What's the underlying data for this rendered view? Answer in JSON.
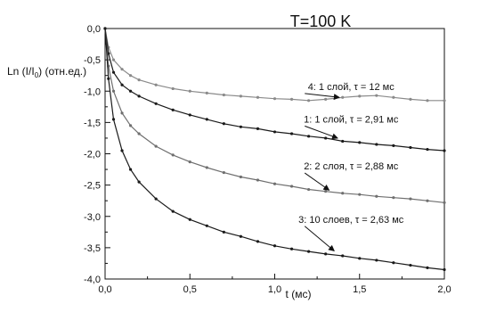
{
  "chart_data": {
    "type": "line",
    "title": "T=100 K",
    "xlabel": "t (мс)",
    "ylabel_main": "Ln (I/I",
    "ylabel_sub": "0",
    "ylabel_tail": ") (отн.ед.)",
    "xlim": [
      0,
      2.0
    ],
    "ylim": [
      -4.0,
      0.0
    ],
    "xticks": [
      0,
      0.5,
      1.0,
      1.5,
      2.0
    ],
    "xtick_labels": [
      "0,0",
      "0,5",
      "1,0",
      "1,5",
      "2,0"
    ],
    "yticks": [
      0,
      -0.5,
      -1.0,
      -1.5,
      -2.0,
      -2.5,
      -3.0,
      -3.5,
      -4.0
    ],
    "ytick_labels": [
      "0,0",
      "-0,5",
      "-1,0",
      "-1,5",
      "-2,0",
      "-2,5",
      "-3,0",
      "-3,5",
      "-4,0"
    ],
    "grid": false,
    "series": [
      {
        "label": "4: 1 слой, τ = 12 мс",
        "color": "#8a8a8a",
        "x": [
          0,
          0.02,
          0.05,
          0.1,
          0.15,
          0.2,
          0.3,
          0.4,
          0.5,
          0.6,
          0.7,
          0.8,
          0.9,
          1.0,
          1.1,
          1.2,
          1.3,
          1.4,
          1.5,
          1.6,
          1.7,
          1.8,
          1.9,
          2.0
        ],
        "y": [
          0,
          -0.3,
          -0.5,
          -0.65,
          -0.75,
          -0.82,
          -0.9,
          -0.96,
          -1.0,
          -1.03,
          -1.06,
          -1.08,
          -1.1,
          -1.12,
          -1.13,
          -1.15,
          -1.13,
          -1.1,
          -1.08,
          -1.07,
          -1.1,
          -1.13,
          -1.15,
          -1.15
        ],
        "label_at": [
          1.45,
          -0.98
        ],
        "arrow_to": [
          1.38,
          -1.1
        ]
      },
      {
        "label": "1: 1 слой, τ = 2,91 мс",
        "color": "#1a1a1a",
        "x": [
          0,
          0.02,
          0.05,
          0.1,
          0.15,
          0.2,
          0.3,
          0.4,
          0.5,
          0.6,
          0.7,
          0.8,
          0.9,
          1.0,
          1.1,
          1.2,
          1.3,
          1.4,
          1.5,
          1.6,
          1.7,
          1.8,
          1.9,
          2.0
        ],
        "y": [
          0,
          -0.4,
          -0.7,
          -0.9,
          -1.0,
          -1.08,
          -1.2,
          -1.3,
          -1.38,
          -1.45,
          -1.52,
          -1.57,
          -1.6,
          -1.65,
          -1.68,
          -1.72,
          -1.75,
          -1.8,
          -1.82,
          -1.85,
          -1.87,
          -1.9,
          -1.93,
          -1.95
        ],
        "label_at": [
          1.45,
          -1.5
        ],
        "arrow_to": [
          1.37,
          -1.75
        ]
      },
      {
        "label": "2: 2 слоя, τ = 2,88 мс",
        "color": "#6f6f6f",
        "x": [
          0,
          0.02,
          0.05,
          0.1,
          0.15,
          0.2,
          0.3,
          0.4,
          0.5,
          0.6,
          0.7,
          0.8,
          0.9,
          1.0,
          1.1,
          1.2,
          1.3,
          1.4,
          1.5,
          1.6,
          1.7,
          1.8,
          1.9,
          2.0
        ],
        "y": [
          0,
          -0.6,
          -1.0,
          -1.35,
          -1.55,
          -1.68,
          -1.88,
          -2.02,
          -2.13,
          -2.22,
          -2.3,
          -2.37,
          -2.42,
          -2.48,
          -2.52,
          -2.57,
          -2.6,
          -2.63,
          -2.65,
          -2.68,
          -2.7,
          -2.72,
          -2.75,
          -2.78
        ],
        "label_at": [
          1.45,
          -2.25
        ],
        "arrow_to": [
          1.32,
          -2.58
        ]
      },
      {
        "label": "3: 10 слоев, τ = 2,63 мс",
        "color": "#1a1a1a",
        "x": [
          0,
          0.02,
          0.05,
          0.1,
          0.15,
          0.2,
          0.3,
          0.4,
          0.5,
          0.6,
          0.7,
          0.8,
          0.9,
          1.0,
          1.1,
          1.2,
          1.3,
          1.4,
          1.5,
          1.6,
          1.7,
          1.8,
          1.9,
          2.0
        ],
        "y": [
          0,
          -0.8,
          -1.45,
          -1.95,
          -2.25,
          -2.45,
          -2.72,
          -2.92,
          -3.05,
          -3.15,
          -3.25,
          -3.32,
          -3.4,
          -3.47,
          -3.52,
          -3.56,
          -3.6,
          -3.63,
          -3.67,
          -3.7,
          -3.74,
          -3.78,
          -3.82,
          -3.85
        ],
        "label_at": [
          1.45,
          -3.1
        ],
        "arrow_to": [
          1.35,
          -3.55
        ]
      }
    ]
  }
}
